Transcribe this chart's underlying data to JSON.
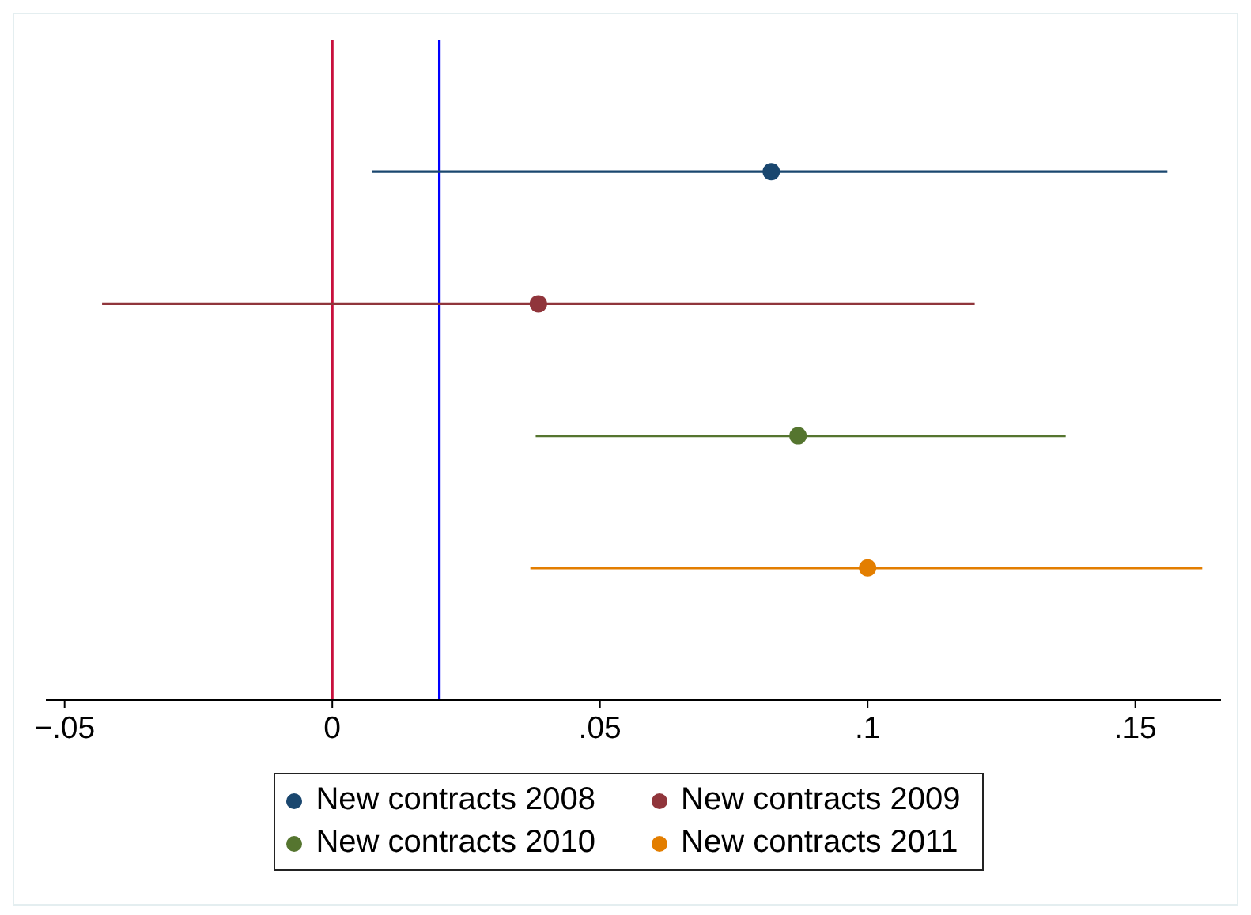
{
  "chart_data": {
    "type": "scatter",
    "orientation": "horizontal",
    "categories": [
      null,
      null,
      null,
      null
    ],
    "series": [
      {
        "name": "New contracts 2008",
        "color": "#1a476f",
        "values": [
          0.082,
          null,
          null,
          null
        ],
        "errors": [
          [
            0.0075,
            0.156
          ],
          null,
          null,
          null
        ]
      },
      {
        "name": "New contracts 2009",
        "color": "#90353b",
        "values": [
          null,
          0.0385,
          null,
          null
        ],
        "errors": [
          null,
          [
            -0.043,
            0.12
          ],
          null,
          null
        ]
      },
      {
        "name": "New contracts 2010",
        "color": "#55752f",
        "values": [
          null,
          null,
          0.087,
          null
        ],
        "errors": [
          null,
          null,
          [
            0.038,
            0.137
          ],
          null
        ]
      },
      {
        "name": "New contracts 2011",
        "color": "#e37e00",
        "values": [
          null,
          null,
          null,
          0.1
        ],
        "errors": [
          null,
          null,
          null,
          [
            0.037,
            0.1625
          ]
        ]
      }
    ],
    "xlim": [
      -0.0535,
      0.166
    ],
    "xticks": [
      {
        "value": -0.05,
        "label": "−.05"
      },
      0,
      {
        "value": 0.05,
        "label": ".05"
      },
      {
        "value": 0.1,
        "label": ".1"
      },
      {
        "value": 0.15,
        "label": ".15"
      }
    ],
    "ref_lines": [
      {
        "axis": "x",
        "value": 0,
        "color": "#c8103c"
      },
      {
        "axis": "x",
        "value": 0.02,
        "color": "#0000ff"
      }
    ],
    "legend": "bottom",
    "marker": "circle"
  }
}
